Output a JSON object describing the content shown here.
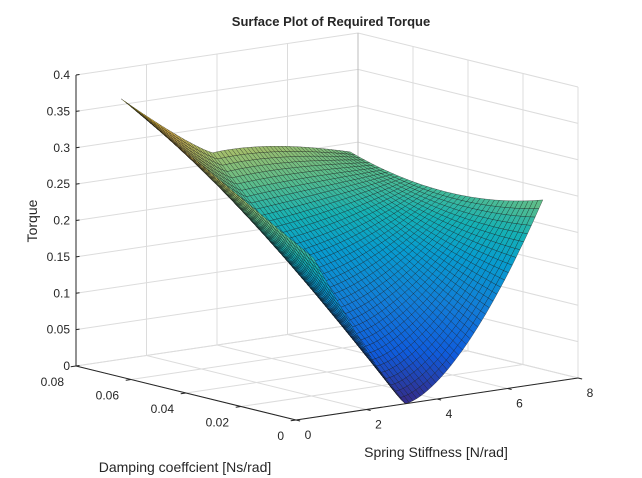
{
  "chart_data": {
    "type": "surface",
    "title": "Surface Plot of Required Torque",
    "xlabel": "Spring Stiffness [N/rad]",
    "ylabel": "Damping coeffcient [Ns/rad]",
    "zlabel": "Torque",
    "xlim": [
      0,
      8
    ],
    "ylim": [
      0,
      0.08
    ],
    "zlim": [
      0,
      0.4
    ],
    "x_ticks": [
      "0",
      "2",
      "4",
      "6",
      "8"
    ],
    "y_ticks": [
      "0",
      "0.02",
      "0.04",
      "0.06",
      "0.08"
    ],
    "z_ticks": [
      "0",
      "0.05",
      "0.1",
      "0.15",
      "0.2",
      "0.25",
      "0.3",
      "0.35",
      "0.4"
    ],
    "grid": true,
    "colormap": "parula",
    "surface_x_range": [
      0.5,
      7
    ],
    "surface_y_range": [
      0,
      0.07
    ],
    "valley_stiffness": 3.1,
    "corners": [
      {
        "stiffness": 0.5,
        "damping": 0.07,
        "torque": 0.373
      },
      {
        "stiffness": 7,
        "damping": 0.07,
        "torque": 0.253
      },
      {
        "stiffness": 7,
        "damping": 0,
        "torque": 0.252
      },
      {
        "stiffness": 3.1,
        "damping": 0,
        "torque": 0.0
      },
      {
        "stiffness": 0.5,
        "damping": 0,
        "torque": 0.219
      },
      {
        "stiffness": 3.1,
        "damping": 0.07,
        "torque": 0.28
      }
    ]
  }
}
